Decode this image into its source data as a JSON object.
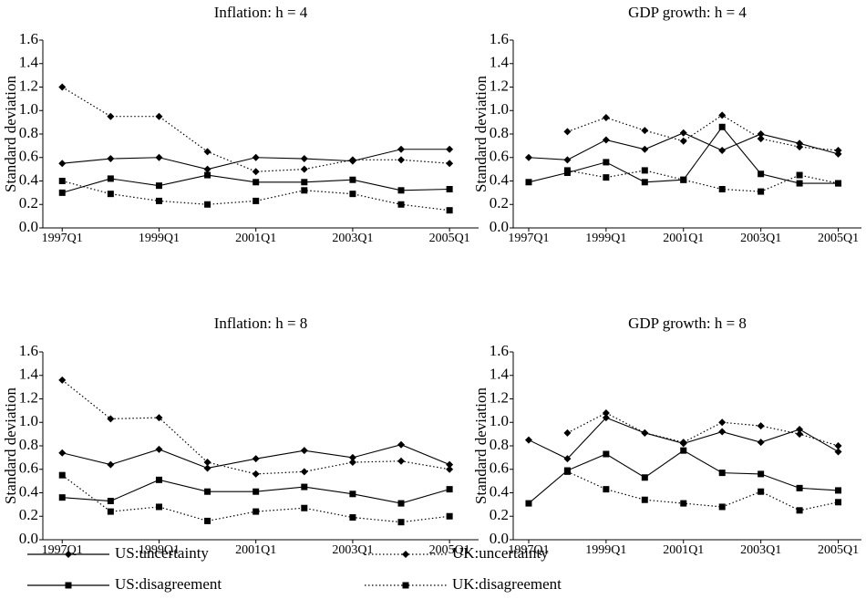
{
  "chart_data": [
    {
      "type": "line",
      "title": "Inflation: h = 4",
      "y_label": "Standard deviation",
      "x": [
        1997,
        1998,
        1999,
        2000,
        2001,
        2002,
        2003,
        2004,
        2005
      ],
      "xlim": [
        1996.6,
        2005.6
      ],
      "xticks": [
        {
          "value": 1997,
          "label": "1997Q1"
        },
        {
          "value": 1999,
          "label": "1999Q1"
        },
        {
          "value": 2001,
          "label": "2001Q1"
        },
        {
          "value": 2003,
          "label": "2003Q1"
        },
        {
          "value": 2005,
          "label": "2005Q1"
        }
      ],
      "ylim": [
        0,
        1.6
      ],
      "yticks": [
        {
          "value": 0,
          "label": "0.0"
        },
        0.2,
        0.4,
        0.6,
        0.8,
        {
          "value": 1,
          "label": "1.0"
        },
        1.2,
        1.4,
        1.6
      ],
      "series": [
        {
          "name": "US:uncertainty",
          "color": "#000000",
          "dash": "solid",
          "marker": "diamond",
          "values": [
            0.55,
            0.59,
            0.6,
            0.5,
            0.6,
            0.59,
            0.57,
            0.67,
            0.67
          ]
        },
        {
          "name": "UK:uncertainty",
          "color": "#000000",
          "dash": "dotted",
          "marker": "diamond",
          "values": [
            1.2,
            0.95,
            0.95,
            0.65,
            0.48,
            0.5,
            0.58,
            0.58,
            0.55
          ]
        },
        {
          "name": "US:disagreement",
          "color": "#000000",
          "dash": "solid",
          "marker": "square",
          "values": [
            0.3,
            0.42,
            0.36,
            0.45,
            0.39,
            0.39,
            0.41,
            0.32,
            0.33
          ]
        },
        {
          "name": "UK:disagreement",
          "color": "#000000",
          "dash": "dotted",
          "marker": "square",
          "values": [
            0.4,
            0.29,
            0.23,
            0.2,
            0.23,
            0.32,
            0.29,
            0.2,
            0.15
          ]
        }
      ]
    },
    {
      "type": "line",
      "title": "GDP growth: h = 4",
      "y_label": "Standard deviation",
      "x": [
        1997,
        1998,
        1999,
        2000,
        2001,
        2002,
        2003,
        2004,
        2005
      ],
      "xlim": [
        1996.6,
        2005.6
      ],
      "xticks": [
        {
          "value": 1997,
          "label": "1997Q1"
        },
        {
          "value": 1999,
          "label": "1999Q1"
        },
        {
          "value": 2001,
          "label": "2001Q1"
        },
        {
          "value": 2003,
          "label": "2003Q1"
        },
        {
          "value": 2005,
          "label": "2005Q1"
        }
      ],
      "ylim": [
        0,
        1.6
      ],
      "yticks": [
        {
          "value": 0,
          "label": "0.0"
        },
        0.2,
        0.4,
        0.6,
        0.8,
        {
          "value": 1,
          "label": "1.0"
        },
        1.2,
        1.4,
        1.6
      ],
      "series": [
        {
          "name": "US:uncertainty",
          "color": "#000000",
          "dash": "solid",
          "marker": "diamond",
          "values": [
            0.6,
            0.58,
            0.75,
            0.67,
            0.81,
            0.66,
            0.8,
            0.72,
            0.63
          ]
        },
        {
          "name": "UK:uncertainty",
          "color": "#000000",
          "dash": "dotted",
          "marker": "diamond",
          "values": [
            null,
            0.82,
            0.94,
            0.83,
            0.74,
            0.96,
            0.76,
            0.69,
            0.66
          ]
        },
        {
          "name": "US:disagreement",
          "color": "#000000",
          "dash": "solid",
          "marker": "square",
          "values": [
            0.39,
            0.47,
            0.56,
            0.39,
            0.41,
            0.86,
            0.46,
            0.38,
            0.38
          ]
        },
        {
          "name": "UK:disagreement",
          "color": "#000000",
          "dash": "dotted",
          "marker": "square",
          "values": [
            null,
            0.49,
            0.43,
            0.49,
            0.41,
            0.33,
            0.31,
            0.45,
            0.38
          ]
        }
      ]
    },
    {
      "type": "line",
      "title": "Inflation: h = 8",
      "y_label": "Standard deviation",
      "x": [
        1997,
        1998,
        1999,
        2000,
        2001,
        2002,
        2003,
        2004,
        2005
      ],
      "xlim": [
        1996.6,
        2005.6
      ],
      "xticks": [
        {
          "value": 1997,
          "label": "1997Q1"
        },
        {
          "value": 1999,
          "label": "1999Q1"
        },
        {
          "value": 2001,
          "label": "2001Q1"
        },
        {
          "value": 2003,
          "label": "2003Q1"
        },
        {
          "value": 2005,
          "label": "2005Q1"
        }
      ],
      "ylim": [
        0,
        1.6
      ],
      "yticks": [
        {
          "value": 0,
          "label": "0.0"
        },
        0.2,
        0.4,
        0.6,
        0.8,
        {
          "value": 1,
          "label": "1.0"
        },
        1.2,
        1.4,
        1.6
      ],
      "series": [
        {
          "name": "US:uncertainty",
          "color": "#000000",
          "dash": "solid",
          "marker": "diamond",
          "values": [
            0.74,
            0.64,
            0.77,
            0.61,
            0.69,
            0.76,
            0.7,
            0.81,
            0.64
          ]
        },
        {
          "name": "UK:uncertainty",
          "color": "#000000",
          "dash": "dotted",
          "marker": "diamond",
          "values": [
            1.36,
            1.03,
            1.04,
            0.66,
            0.56,
            0.58,
            0.66,
            0.67,
            0.6
          ]
        },
        {
          "name": "US:disagreement",
          "color": "#000000",
          "dash": "solid",
          "marker": "square",
          "values": [
            0.36,
            0.33,
            0.51,
            0.41,
            0.41,
            0.45,
            0.39,
            0.31,
            0.43
          ]
        },
        {
          "name": "UK:disagreement",
          "color": "#000000",
          "dash": "dotted",
          "marker": "square",
          "values": [
            0.55,
            0.24,
            0.28,
            0.16,
            0.24,
            0.27,
            0.19,
            0.15,
            0.2
          ]
        }
      ]
    },
    {
      "type": "line",
      "title": "GDP growth: h = 8",
      "y_label": "Standard deviation",
      "x": [
        1997,
        1998,
        1999,
        2000,
        2001,
        2002,
        2003,
        2004,
        2005
      ],
      "xlim": [
        1996.6,
        2005.6
      ],
      "xticks": [
        {
          "value": 1997,
          "label": "1997Q1"
        },
        {
          "value": 1999,
          "label": "1999Q1"
        },
        {
          "value": 2001,
          "label": "2001Q1"
        },
        {
          "value": 2003,
          "label": "2003Q1"
        },
        {
          "value": 2005,
          "label": "2005Q1"
        }
      ],
      "ylim": [
        0,
        1.6
      ],
      "yticks": [
        {
          "value": 0,
          "label": "0.0"
        },
        0.2,
        0.4,
        0.6,
        0.8,
        {
          "value": 1,
          "label": "1.0"
        },
        1.2,
        1.4,
        1.6
      ],
      "series": [
        {
          "name": "US:uncertainty",
          "color": "#000000",
          "dash": "solid",
          "marker": "diamond",
          "values": [
            0.85,
            0.69,
            1.04,
            0.91,
            0.82,
            0.92,
            0.83,
            0.94,
            0.75
          ]
        },
        {
          "name": "UK:uncertainty",
          "color": "#000000",
          "dash": "dotted",
          "marker": "diamond",
          "values": [
            null,
            0.91,
            1.08,
            0.91,
            0.83,
            1.0,
            0.97,
            0.9,
            0.8
          ]
        },
        {
          "name": "US:disagreement",
          "color": "#000000",
          "dash": "solid",
          "marker": "square",
          "values": [
            0.31,
            0.59,
            0.73,
            0.53,
            0.76,
            0.57,
            0.56,
            0.44,
            0.42
          ]
        },
        {
          "name": "UK:disagreement",
          "color": "#000000",
          "dash": "dotted",
          "marker": "square",
          "values": [
            null,
            0.58,
            0.43,
            0.34,
            0.31,
            0.28,
            0.41,
            0.25,
            0.32
          ]
        }
      ]
    }
  ]
}
